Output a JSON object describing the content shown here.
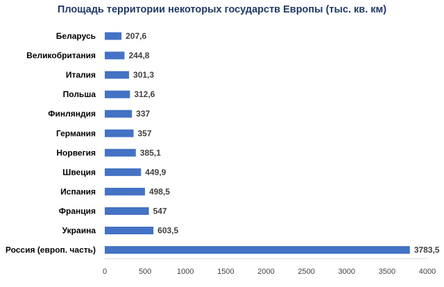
{
  "chart_data": {
    "type": "bar",
    "orientation": "horizontal",
    "title": "Площадь территории некоторых государств Европы (тыс. кв. км)",
    "xlabel": "",
    "ylabel": "",
    "categories": [
      "Беларусь",
      "Великобритания",
      "Италия",
      "Польша",
      "Финляндия",
      "Германия",
      "Норвегия",
      "Швеция",
      "Испания",
      "Франция",
      "Украина",
      "Россия (европ. часть)"
    ],
    "values": [
      207.6,
      244.8,
      301.3,
      312.6,
      337,
      357,
      385.1,
      449.9,
      498.5,
      547,
      603.5,
      3783.5
    ],
    "value_labels": [
      "207,6",
      "244,8",
      "301,3",
      "312,6",
      "337",
      "357",
      "385,1",
      "449,9",
      "498,5",
      "547",
      "603,5",
      "3783,5"
    ],
    "xlim": [
      0,
      4000
    ],
    "xticks": [
      0,
      500,
      1000,
      1500,
      2000,
      2500,
      3000,
      3500,
      4000
    ],
    "xtick_labels": [
      "0",
      "500",
      "1000",
      "1500",
      "2000",
      "2500",
      "3000",
      "3500",
      "4000"
    ],
    "grid": false,
    "legend": "none",
    "bar_color": "#4472c4",
    "title_color": "#1f3864",
    "text_color": "#000000",
    "axis_color": "#d9d9d9"
  }
}
